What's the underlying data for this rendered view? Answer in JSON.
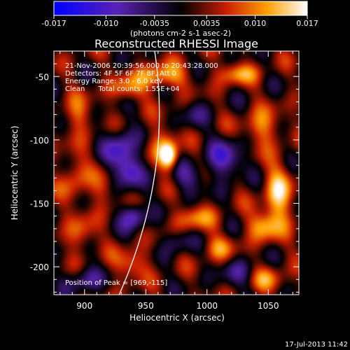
{
  "chart_data": {
    "type": "heatmap",
    "title": "Reconstructed RHESSI Image",
    "xlabel": "Heliocentric X (arcsec)",
    "ylabel": "Heliocentric Y (arcsec)",
    "xlim": [
      875,
      1075
    ],
    "ylim": [
      -222,
      -30
    ],
    "xticks": [
      900,
      950,
      1000,
      1050
    ],
    "yticks": [
      -50,
      -100,
      -150,
      -200
    ],
    "colorbar": {
      "label": "(photons cm-2 s-1 asec-2)",
      "range": [
        -0.017,
        0.017
      ],
      "ticks": [
        "-0.017",
        "-0.010",
        "-0.0035",
        "0.0035",
        "0.010",
        "0.017"
      ]
    },
    "annotations": [
      "21-Nov-2006 20:39:56.000 to 20:43:28.000",
      "Detectors: 4F 5F 6F 7F 8F, Att 0",
      "Energy Range: 3.0 - 6.0 keV",
      "Clean      Total counts: 1.55E+04"
    ],
    "peak_label": "Position of Peak = [969,-115]",
    "peak": [
      969,
      -115
    ],
    "limb_visible": true,
    "sources": [
      {
        "x": 969,
        "y": -113,
        "a": 1.15,
        "sx": 5,
        "sy": 7
      },
      {
        "x": 963,
        "y": -104,
        "a": 0.45,
        "sx": 9,
        "sy": 11
      },
      {
        "x": 963,
        "y": -50,
        "a": 0.75,
        "sx": 14,
        "sy": 7
      },
      {
        "x": 935,
        "y": -60,
        "a": 0.55,
        "sx": 10,
        "sy": 7
      },
      {
        "x": 1025,
        "y": -48,
        "a": 0.6,
        "sx": 12,
        "sy": 6
      },
      {
        "x": 895,
        "y": -80,
        "a": 0.5,
        "sx": 8,
        "sy": 10
      },
      {
        "x": 892,
        "y": -130,
        "a": 0.5,
        "sx": 8,
        "sy": 14
      },
      {
        "x": 897,
        "y": -175,
        "a": 0.5,
        "sx": 8,
        "sy": 10
      },
      {
        "x": 1045,
        "y": -90,
        "a": 0.6,
        "sx": 10,
        "sy": 10
      },
      {
        "x": 1058,
        "y": -145,
        "a": 0.85,
        "sx": 8,
        "sy": 18
      },
      {
        "x": 1045,
        "y": -168,
        "a": 0.65,
        "sx": 9,
        "sy": 8
      },
      {
        "x": 990,
        "y": -162,
        "a": 0.55,
        "sx": 12,
        "sy": 7
      },
      {
        "x": 1010,
        "y": -185,
        "a": 0.5,
        "sx": 9,
        "sy": 7
      },
      {
        "x": 938,
        "y": -198,
        "a": 0.55,
        "sx": 10,
        "sy": 8
      },
      {
        "x": 915,
        "y": -140,
        "a": 0.35,
        "sx": 7,
        "sy": 10
      },
      {
        "x": 1050,
        "y": -210,
        "a": 0.5,
        "sx": 10,
        "sy": 7
      },
      {
        "x": 930,
        "y": -107,
        "a": -0.8,
        "sx": 9,
        "sy": 11
      },
      {
        "x": 937,
        "y": -125,
        "a": -0.75,
        "sx": 8,
        "sy": 9
      },
      {
        "x": 940,
        "y": -160,
        "a": -0.85,
        "sx": 7,
        "sy": 7
      },
      {
        "x": 1015,
        "y": -115,
        "a": -0.8,
        "sx": 10,
        "sy": 10
      },
      {
        "x": 985,
        "y": -130,
        "a": -0.5,
        "sx": 10,
        "sy": 8
      },
      {
        "x": 900,
        "y": -210,
        "a": -0.55,
        "sx": 10,
        "sy": 7
      },
      {
        "x": 1025,
        "y": -205,
        "a": -0.45,
        "sx": 9,
        "sy": 8
      },
      {
        "x": 975,
        "y": -180,
        "a": -0.4,
        "sx": 8,
        "sy": 7
      },
      {
        "x": 990,
        "y": -80,
        "a": -0.35,
        "sx": 8,
        "sy": 8
      }
    ]
  },
  "footer": {
    "timestamp": "17-Jul-2013 11:42"
  }
}
